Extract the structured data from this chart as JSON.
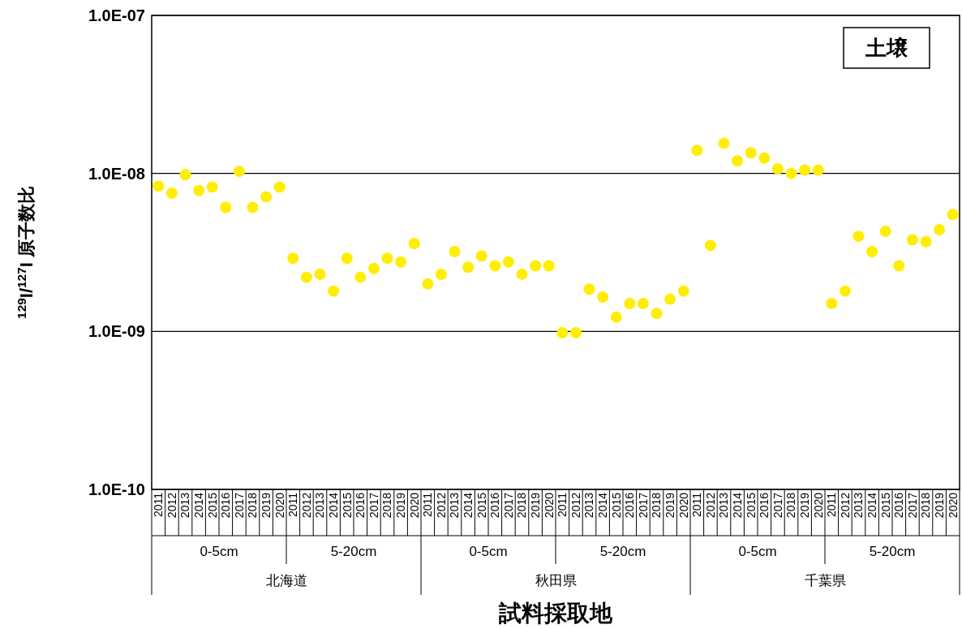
{
  "chart_data": {
    "type": "scatter",
    "ylabel": "$^{129}$I/$^{127}$I 原子数比",
    "xlabel": "試料採取地",
    "annotations": [
      "土壌",
      "0-5cm",
      "5-20cm",
      "0-5cm",
      "5-20cm",
      "0-5cm",
      "5-20cm",
      "北海道",
      "秋田県",
      "千葉県"
    ],
    "categories": [
      "2011",
      "2012",
      "2013",
      "2014",
      "2015",
      "2016",
      "2017",
      "2018",
      "2019",
      "2020",
      "2011",
      "2012",
      "2013",
      "2014",
      "2015",
      "2016",
      "2017",
      "2018",
      "2019",
      "2020",
      "2011",
      "2012",
      "2013",
      "2014",
      "2015",
      "2016",
      "2017",
      "2018",
      "2019",
      "2020",
      "2011",
      "2012",
      "2013",
      "2014",
      "2015",
      "2016",
      "2017",
      "2018",
      "2019",
      "2020",
      "2011",
      "2012",
      "2013",
      "2014",
      "2015",
      "2016",
      "2017",
      "2018",
      "2019",
      "2020",
      "2011",
      "2012",
      "2013",
      "2014",
      "2015",
      "2016",
      "2017",
      "2018",
      "2019",
      "2020"
    ],
    "series": [
      {
        "color": "#ffee00",
        "values": [
          8.3e-09,
          7.5e-09,
          9.8e-09,
          7.8e-09,
          8.2e-09,
          6.1e-09,
          1.03e-08,
          6.1e-09,
          7.1e-09,
          8.2e-09,
          2.9e-09,
          2.2e-09,
          2.3e-09,
          1.8e-09,
          2.9e-09,
          2.2e-09,
          2.5e-09,
          2.9e-09,
          2.75e-09,
          3.6e-09,
          2e-09,
          2.3e-09,
          3.2e-09,
          2.55e-09,
          3e-09,
          2.6e-09,
          2.75e-09,
          2.3e-09,
          2.6e-09,
          2.6e-09,
          9.8e-10,
          9.8e-10,
          1.85e-09,
          1.65e-09,
          1.23e-09,
          1.5e-09,
          1.5e-09,
          1.3e-09,
          1.6e-09,
          1.8e-09,
          1.4e-08,
          3.5e-09,
          1.55e-08,
          1.2e-08,
          1.35e-08,
          1.25e-08,
          1.07e-08,
          1e-08,
          1.05e-08,
          1.05e-08,
          1.5e-09,
          1.8e-09,
          4e-09,
          3.2e-09,
          4.3e-09,
          2.6e-09,
          3.8e-09,
          3.7e-09,
          4.4e-09,
          5.5e-09
        ]
      }
    ],
    "ylim": [
      1e-10,
      1e-07
    ],
    "yticks": [
      {
        "value": 1e-10,
        "label": "1.0E-10"
      },
      {
        "value": 1e-09,
        "label": "1.0E-09"
      },
      {
        "value": 1e-08,
        "label": "1.0E-08"
      },
      {
        "value": 1e-07,
        "label": "1.0E-07"
      }
    ],
    "log": true,
    "grid": "y",
    "marker": "circle"
  }
}
